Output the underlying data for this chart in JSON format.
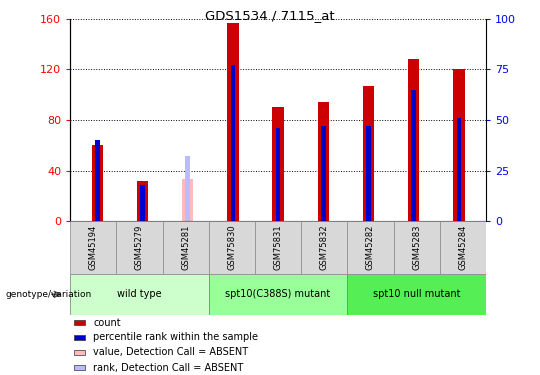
{
  "title": "GDS1534 / 7115_at",
  "samples": [
    "GSM45194",
    "GSM45279",
    "GSM45281",
    "GSM75830",
    "GSM75831",
    "GSM75832",
    "GSM45282",
    "GSM45283",
    "GSM45284"
  ],
  "count_values": [
    60,
    32,
    0,
    157,
    90,
    94,
    107,
    128,
    120
  ],
  "percentile_values": [
    40,
    18,
    0,
    77,
    46,
    47,
    47,
    65,
    51
  ],
  "absent_count": [
    0,
    0,
    33,
    0,
    0,
    0,
    0,
    0,
    0
  ],
  "absent_percentile": [
    0,
    0,
    32,
    0,
    0,
    0,
    0,
    0,
    0
  ],
  "groups": [
    {
      "label": "wild type",
      "n": 3,
      "color": "#ccffcc"
    },
    {
      "label": "spt10(C388S) mutant",
      "n": 3,
      "color": "#99ff99"
    },
    {
      "label": "spt10 null mutant",
      "n": 3,
      "color": "#55ee55"
    }
  ],
  "ylim_left": [
    0,
    160
  ],
  "ylim_right": [
    0,
    100
  ],
  "yticks_left": [
    0,
    40,
    80,
    120,
    160
  ],
  "yticks_right": [
    0,
    25,
    50,
    75,
    100
  ],
  "bar_color": "#cc0000",
  "percentile_color": "#0000cc",
  "absent_bar_color": "#ffbbbb",
  "absent_pct_color": "#bbbbff",
  "legend_items": [
    {
      "label": "count",
      "color": "#cc0000"
    },
    {
      "label": "percentile rank within the sample",
      "color": "#0000cc"
    },
    {
      "label": "value, Detection Call = ABSENT",
      "color": "#ffbbbb"
    },
    {
      "label": "rank, Detection Call = ABSENT",
      "color": "#bbbbff"
    }
  ],
  "genotype_label": "genotype/variation"
}
